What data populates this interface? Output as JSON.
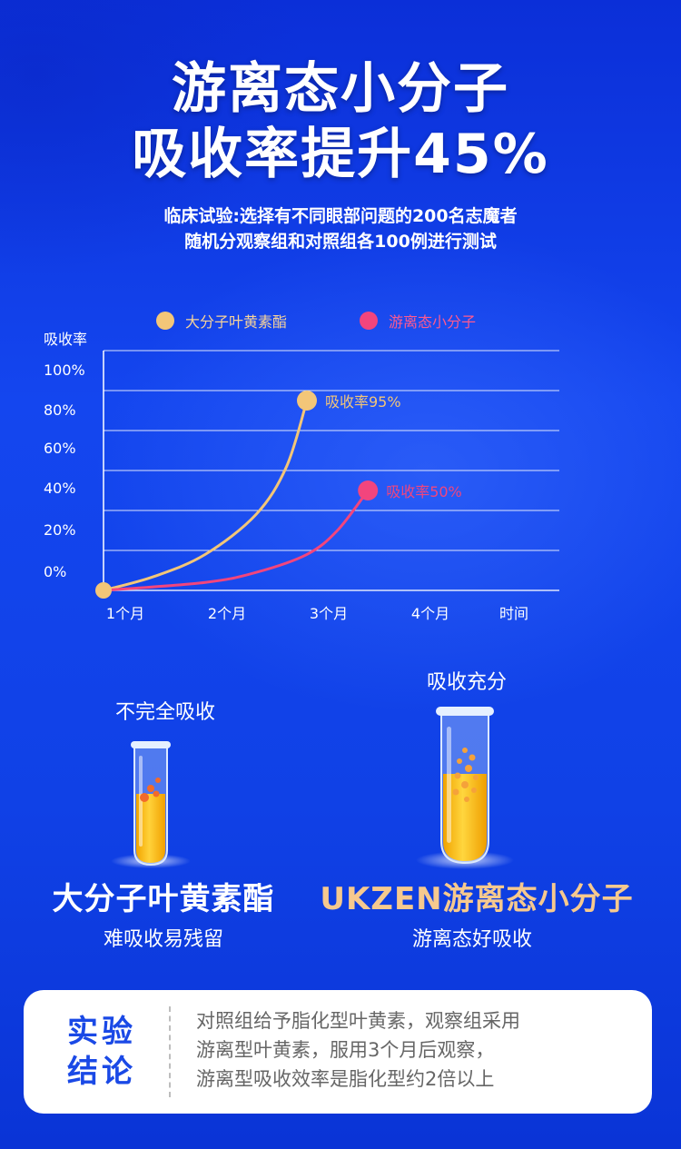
{
  "header": {
    "title_line1": "游离态小分子",
    "title_line2": "吸收率提升45%",
    "subtitle_line1": "临床试验:选择有不同眼部问题的200名志魔者",
    "subtitle_line2": "随机分观察组和对照组各100例进行测试"
  },
  "chart_data": {
    "type": "line",
    "ylabel": "吸收率",
    "xlabel": "时间",
    "y_ticks": [
      "100%",
      "80%",
      "60%",
      "40%",
      "20%",
      "0%"
    ],
    "x_ticks": [
      "1个月",
      "2个月",
      "3个月",
      "4个月"
    ],
    "series": [
      {
        "name": "大分子叶黄素酯",
        "color": "#f3c678",
        "x": [
          1,
          1.5,
          2,
          2.5,
          2.8,
          3.0
        ],
        "values": [
          0,
          7,
          18,
          38,
          62,
          95
        ],
        "end_label": "吸收率95%"
      },
      {
        "name": "游离态小分子",
        "color": "#f2457d",
        "x": [
          1,
          2,
          2.5,
          3,
          3.3,
          3.6
        ],
        "values": [
          0,
          4,
          9,
          18,
          30,
          50
        ],
        "end_label": "吸收率50%"
      }
    ]
  },
  "comparison": {
    "left": {
      "caption": "不完全吸收",
      "name": "大分子叶黄素酯",
      "desc": "难吸收易残留"
    },
    "right": {
      "caption": "吸收充分",
      "name": "UKZEN游离态小分子",
      "desc": "游离态好吸收",
      "name_color": "#f6c98e"
    }
  },
  "conclusion": {
    "title_line1": "实验",
    "title_line2": "结论",
    "text_line1": "对照组给予脂化型叶黄素，观察组采用",
    "text_line2": "游离型叶黄素，服用3个月后观察，",
    "text_line3": "游离型吸收效率是脂化型约2倍以上"
  }
}
